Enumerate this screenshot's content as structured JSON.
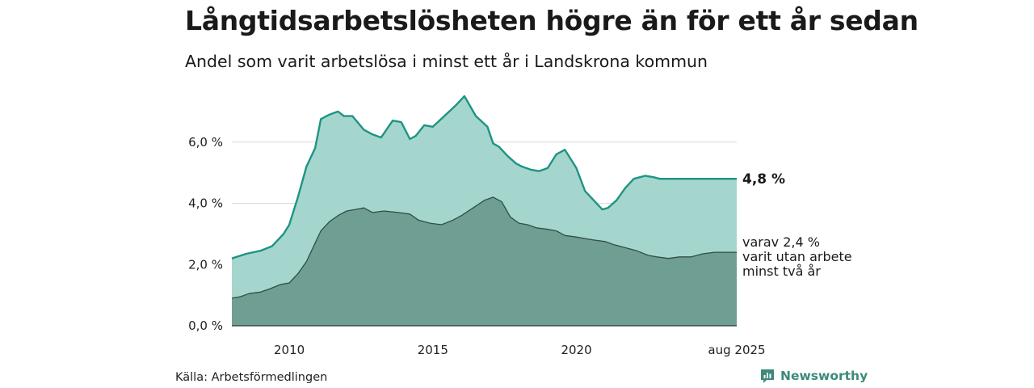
{
  "header": {
    "title": "Långtidsarbetslösheten högre än för ett år sedan",
    "subtitle": "Andel som varit arbetslösa i minst ett år i Landskrona kommun"
  },
  "footer": {
    "source": "Källa: Arbetsförmedlingen",
    "brand": "Newsworthy"
  },
  "colors": {
    "series_total_fill": "#a5d6cd",
    "series_total_line": "#1e9484",
    "series_two_year_fill": "#6f9e93",
    "series_two_year_line": "#2f4f47",
    "brand": "#3d8a7c"
  },
  "chart_data": {
    "type": "area",
    "x_unit": "year",
    "xlim": [
      2008.0,
      2025.583
    ],
    "ylim": [
      0,
      8
    ],
    "yticks": [
      0,
      2,
      4,
      6
    ],
    "ytick_labels": [
      "0,0 %",
      "2,0 %",
      "4,0 %",
      "6,0 %"
    ],
    "xticks": [
      2010,
      2015,
      2020,
      2025.583
    ],
    "xtick_labels": [
      "2010",
      "2015",
      "2020",
      "aug 2025"
    ],
    "grid": true,
    "end_labels": {
      "total": "4,8 %",
      "two_year_lines": [
        "varav 2,4 %",
        "varit utan arbete",
        "minst två år"
      ]
    },
    "series": [
      {
        "key": "total",
        "x": [
          2008.0,
          2008.5,
          2009.0,
          2009.4,
          2009.8,
          2010.0,
          2010.3,
          2010.6,
          2010.9,
          2011.1,
          2011.4,
          2011.7,
          2011.9,
          2012.2,
          2012.6,
          2012.9,
          2013.2,
          2013.6,
          2013.9,
          2014.2,
          2014.4,
          2014.7,
          2015.0,
          2015.4,
          2015.8,
          2016.1,
          2016.5,
          2016.9,
          2017.1,
          2017.3,
          2017.6,
          2017.9,
          2018.1,
          2018.4,
          2018.7,
          2019.0,
          2019.3,
          2019.6,
          2020.0,
          2020.3,
          2020.6,
          2020.9,
          2021.1,
          2021.4,
          2021.7,
          2022.0,
          2022.4,
          2022.7,
          2022.9,
          2023.2,
          2023.5,
          2023.9,
          2024.3,
          2024.7,
          2025.0,
          2025.3,
          2025.583
        ],
        "values": [
          2.2,
          2.35,
          2.45,
          2.6,
          3.0,
          3.3,
          4.2,
          5.2,
          5.8,
          6.75,
          6.9,
          7.0,
          6.85,
          6.85,
          6.4,
          6.25,
          6.15,
          6.7,
          6.65,
          6.1,
          6.2,
          6.55,
          6.5,
          6.85,
          7.2,
          7.5,
          6.85,
          6.5,
          5.95,
          5.85,
          5.55,
          5.3,
          5.2,
          5.1,
          5.05,
          5.15,
          5.6,
          5.75,
          5.15,
          4.4,
          4.1,
          3.8,
          3.85,
          4.1,
          4.5,
          4.8,
          4.9,
          4.85,
          4.8,
          4.8,
          4.8,
          4.8,
          4.8,
          4.8,
          4.8,
          4.8,
          4.8
        ]
      },
      {
        "key": "two_year",
        "x": [
          2008.0,
          2008.3,
          2008.6,
          2009.0,
          2009.3,
          2009.7,
          2010.0,
          2010.3,
          2010.6,
          2010.9,
          2011.1,
          2011.4,
          2011.7,
          2012.0,
          2012.3,
          2012.6,
          2012.9,
          2013.3,
          2013.8,
          2014.2,
          2014.5,
          2014.9,
          2015.3,
          2015.7,
          2016.0,
          2016.4,
          2016.8,
          2017.1,
          2017.4,
          2017.7,
          2018.0,
          2018.3,
          2018.6,
          2019.0,
          2019.3,
          2019.6,
          2020.0,
          2020.3,
          2020.6,
          2021.0,
          2021.3,
          2021.7,
          2022.1,
          2022.5,
          2022.8,
          2023.2,
          2023.6,
          2024.0,
          2024.4,
          2024.8,
          2025.2,
          2025.583
        ],
        "values": [
          0.9,
          0.95,
          1.05,
          1.1,
          1.2,
          1.35,
          1.4,
          1.7,
          2.1,
          2.7,
          3.1,
          3.4,
          3.6,
          3.75,
          3.8,
          3.85,
          3.7,
          3.75,
          3.7,
          3.65,
          3.45,
          3.35,
          3.3,
          3.45,
          3.6,
          3.85,
          4.1,
          4.2,
          4.05,
          3.55,
          3.35,
          3.3,
          3.2,
          3.15,
          3.1,
          2.95,
          2.9,
          2.85,
          2.8,
          2.75,
          2.65,
          2.55,
          2.45,
          2.3,
          2.25,
          2.2,
          2.25,
          2.25,
          2.35,
          2.4,
          2.4,
          2.4
        ]
      }
    ]
  }
}
